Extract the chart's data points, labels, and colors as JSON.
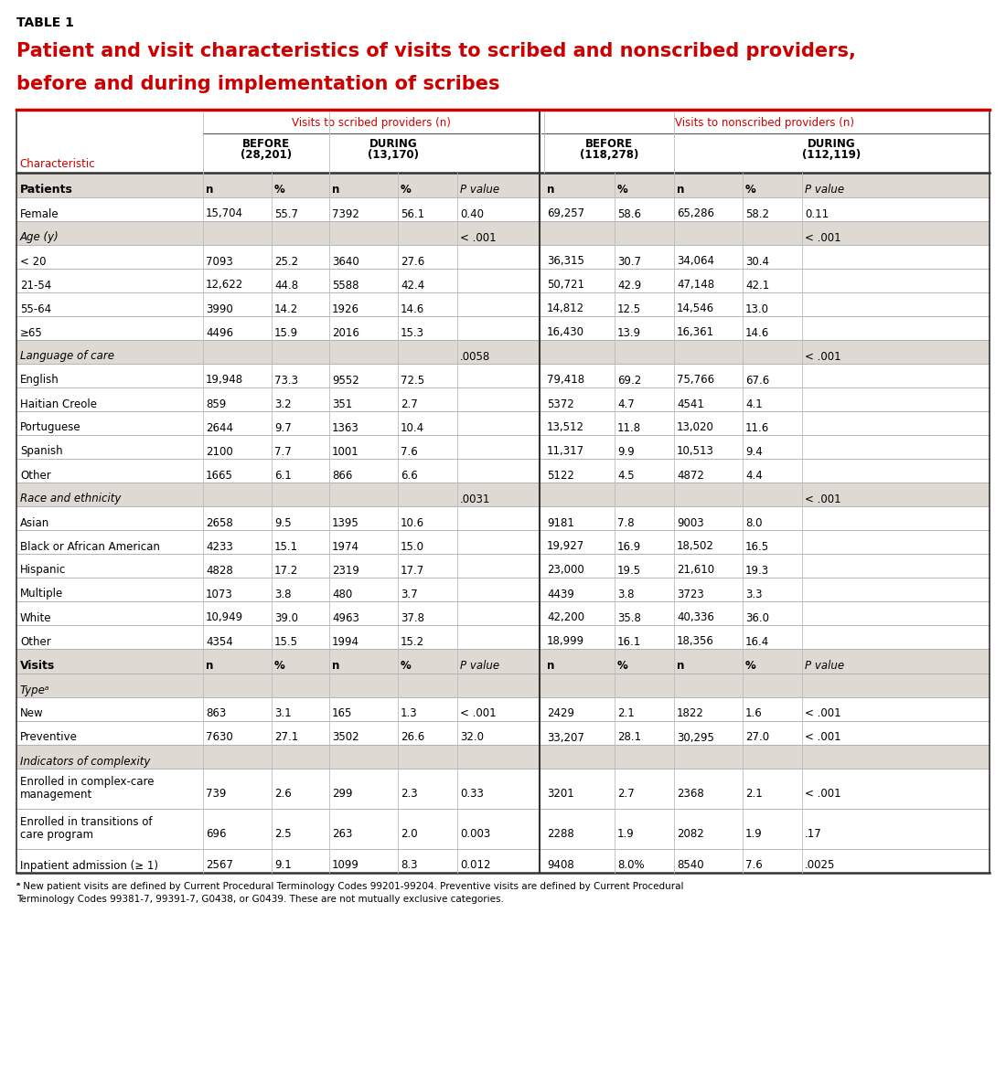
{
  "table_label": "TABLE 1",
  "title_line1": "Patient and visit characteristics of visits to scribed and nonscribed providers,",
  "title_line2": "before and during implementation of scribes",
  "title_color": "#cc0000",
  "table_label_color": "#000000",
  "header_group1": "Visits to scribed providers (n)",
  "header_group2": "Visits to nonscribed providers (n)",
  "header_color": "#cc0000",
  "bg_color_section": "#dedad3",
  "bg_color_white": "#ffffff",
  "footnote_part1": "ᵃ ",
  "footnote_italic": "New patient visits",
  "footnote_part2": " are defined by Current Procedural Terminology Codes 99201-99204. ",
  "footnote_italic2": "Preventive visits",
  "footnote_part3": " are defined by Current Procedural",
  "footnote_line2": "Terminology Codes 99381-7, 99391-7, G0438, or G0439. These are not mutually exclusive categories.",
  "rows": [
    {
      "label": "Patients",
      "type": "section_header",
      "data": [
        "n",
        "%",
        "n",
        "%",
        "P value",
        "n",
        "%",
        "n",
        "%",
        "P value"
      ]
    },
    {
      "label": "Female",
      "type": "data",
      "data": [
        "15,704",
        "55.7",
        "7392",
        "56.1",
        "0.40",
        "69,257",
        "58.6",
        "65,286",
        "58.2",
        "0.11"
      ]
    },
    {
      "label": "Age (y)",
      "type": "category_header",
      "data": [
        "",
        "",
        "",
        "",
        "< .001",
        "",
        "",
        "",
        "",
        "< .001"
      ]
    },
    {
      "label": "< 20",
      "type": "data",
      "data": [
        "7093",
        "25.2",
        "3640",
        "27.6",
        "",
        "36,315",
        "30.7",
        "34,064",
        "30.4",
        ""
      ]
    },
    {
      "label": "21-54",
      "type": "data",
      "data": [
        "12,622",
        "44.8",
        "5588",
        "42.4",
        "",
        "50,721",
        "42.9",
        "47,148",
        "42.1",
        ""
      ]
    },
    {
      "label": "55-64",
      "type": "data",
      "data": [
        "3990",
        "14.2",
        "1926",
        "14.6",
        "",
        "14,812",
        "12.5",
        "14,546",
        "13.0",
        ""
      ]
    },
    {
      "label": "≥65",
      "type": "data",
      "data": [
        "4496",
        "15.9",
        "2016",
        "15.3",
        "",
        "16,430",
        "13.9",
        "16,361",
        "14.6",
        ""
      ]
    },
    {
      "label": "Language of care",
      "type": "category_header",
      "data": [
        "",
        "",
        "",
        "",
        ".0058",
        "",
        "",
        "",
        "",
        "< .001"
      ]
    },
    {
      "label": "English",
      "type": "data",
      "data": [
        "19,948",
        "73.3",
        "9552",
        "72.5",
        "",
        "79,418",
        "69.2",
        "75,766",
        "67.6",
        ""
      ]
    },
    {
      "label": "Haitian Creole",
      "type": "data",
      "data": [
        "859",
        "3.2",
        "351",
        "2.7",
        "",
        "5372",
        "4.7",
        "4541",
        "4.1",
        ""
      ]
    },
    {
      "label": "Portuguese",
      "type": "data",
      "data": [
        "2644",
        "9.7",
        "1363",
        "10.4",
        "",
        "13,512",
        "11.8",
        "13,020",
        "11.6",
        ""
      ]
    },
    {
      "label": "Spanish",
      "type": "data",
      "data": [
        "2100",
        "7.7",
        "1001",
        "7.6",
        "",
        "11,317",
        "9.9",
        "10,513",
        "9.4",
        ""
      ]
    },
    {
      "label": "Other",
      "type": "data",
      "data": [
        "1665",
        "6.1",
        "866",
        "6.6",
        "",
        "5122",
        "4.5",
        "4872",
        "4.4",
        ""
      ]
    },
    {
      "label": "Race and ethnicity",
      "type": "category_header",
      "data": [
        "",
        "",
        "",
        "",
        ".0031",
        "",
        "",
        "",
        "",
        "< .001"
      ]
    },
    {
      "label": "Asian",
      "type": "data",
      "data": [
        "2658",
        "9.5",
        "1395",
        "10.6",
        "",
        "9181",
        "7.8",
        "9003",
        "8.0",
        ""
      ]
    },
    {
      "label": "Black or African American",
      "type": "data",
      "data": [
        "4233",
        "15.1",
        "1974",
        "15.0",
        "",
        "19,927",
        "16.9",
        "18,502",
        "16.5",
        ""
      ]
    },
    {
      "label": "Hispanic",
      "type": "data",
      "data": [
        "4828",
        "17.2",
        "2319",
        "17.7",
        "",
        "23,000",
        "19.5",
        "21,610",
        "19.3",
        ""
      ]
    },
    {
      "label": "Multiple",
      "type": "data",
      "data": [
        "1073",
        "3.8",
        "480",
        "3.7",
        "",
        "4439",
        "3.8",
        "3723",
        "3.3",
        ""
      ]
    },
    {
      "label": "White",
      "type": "data",
      "data": [
        "10,949",
        "39.0",
        "4963",
        "37.8",
        "",
        "42,200",
        "35.8",
        "40,336",
        "36.0",
        ""
      ]
    },
    {
      "label": "Other",
      "type": "data",
      "data": [
        "4354",
        "15.5",
        "1994",
        "15.2",
        "",
        "18,999",
        "16.1",
        "18,356",
        "16.4",
        ""
      ]
    },
    {
      "label": "Visits",
      "type": "section_header",
      "data": [
        "n",
        "%",
        "n",
        "%",
        "P value",
        "n",
        "%",
        "n",
        "%",
        "P value"
      ]
    },
    {
      "label": "Typeᵃ",
      "type": "category_header",
      "data": [
        "",
        "",
        "",
        "",
        "",
        "",
        "",
        "",
        "",
        ""
      ]
    },
    {
      "label": "New",
      "type": "data",
      "data": [
        "863",
        "3.1",
        "165",
        "1.3",
        "< .001",
        "2429",
        "2.1",
        "1822",
        "1.6",
        "< .001"
      ]
    },
    {
      "label": "Preventive",
      "type": "data",
      "data": [
        "7630",
        "27.1",
        "3502",
        "26.6",
        "32.0",
        "33,207",
        "28.1",
        "30,295",
        "27.0",
        "< .001"
      ]
    },
    {
      "label": "Indicators of complexity",
      "type": "category_header",
      "data": [
        "",
        "",
        "",
        "",
        "",
        "",
        "",
        "",
        "",
        ""
      ]
    },
    {
      "label": "Enrolled in complex-care\nmanagement",
      "type": "data_multiline",
      "data": [
        "739",
        "2.6",
        "299",
        "2.3",
        "0.33",
        "3201",
        "2.7",
        "2368",
        "2.1",
        "< .001"
      ]
    },
    {
      "label": "Enrolled in transitions of\ncare program",
      "type": "data_multiline",
      "data": [
        "696",
        "2.5",
        "263",
        "2.0",
        "0.003",
        "2288",
        "1.9",
        "2082",
        "1.9",
        ".17"
      ]
    },
    {
      "label": "Inpatient admission (≥ 1)",
      "type": "data",
      "data": [
        "2567",
        "9.1",
        "1099",
        "8.3",
        "0.012",
        "9408",
        "8.0%",
        "8540",
        "7.6",
        ".0025"
      ]
    }
  ]
}
